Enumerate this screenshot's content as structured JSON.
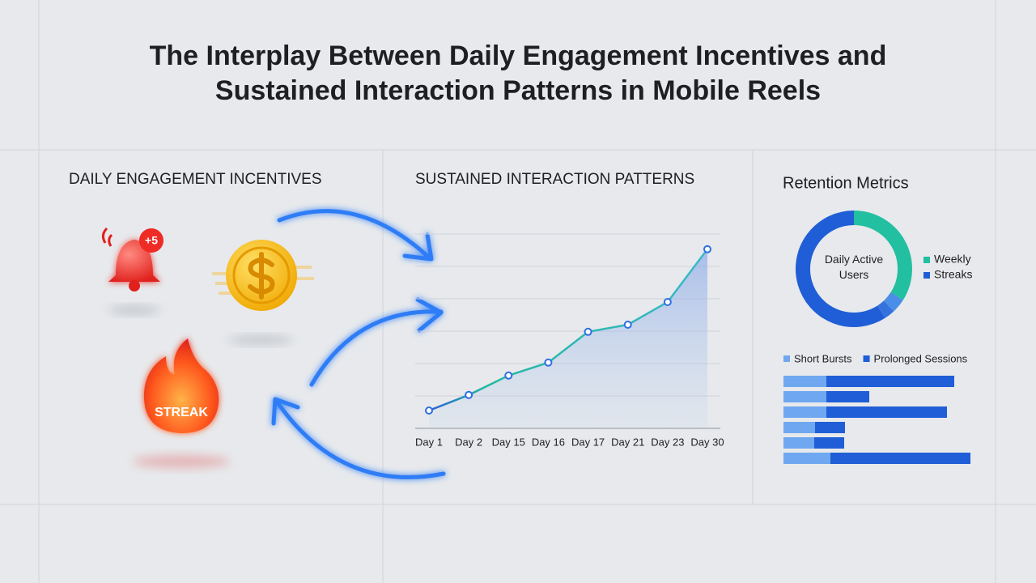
{
  "header": {
    "title": [
      "The Interplay Between Daily Engagement Incentives and",
      "Sustained Interaction Patterns in Mobile Reels"
    ]
  },
  "incentives": {
    "heading": "DAILY ENGAGEMENT INCENTIVES",
    "badge": "+5",
    "streak": "STREAK"
  },
  "chart_data": [
    {
      "type": "line",
      "title": "SUSTAINED INTERACTION PATTERNS",
      "categories": [
        "Day 1",
        "Day 2",
        "Day 15",
        "Day 16",
        "Day 17",
        "Day 21",
        "Day 23",
        "Day 30"
      ],
      "values": [
        0.55,
        1.03,
        1.63,
        2.03,
        2.98,
        3.2,
        3.9,
        5.53
      ],
      "color": "#2f6fe0",
      "ylim": [
        0,
        6
      ],
      "yticks": [
        0,
        1,
        2,
        3,
        4,
        5,
        6
      ],
      "grid": true
    },
    {
      "type": "pie",
      "title": "Retention Metrics",
      "donut": true,
      "center_label": "Daily Active Users",
      "categories": [
        "Weekly",
        null,
        null,
        "Streaks"
      ],
      "values": [
        34,
        4,
        3,
        59
      ],
      "colors": [
        "#22bfa0",
        "#4a8ee8",
        "#3572de",
        "#1f5ed6"
      ]
    },
    {
      "type": "bar",
      "orientation": "horizontal",
      "stacked": true,
      "xlim": [
        0,
        240
      ],
      "series": [
        {
          "name": "Short Bursts",
          "color": "#6fa8f0",
          "values": [
            53,
            53,
            53,
            39,
            38,
            58
          ]
        },
        {
          "name": "Prolonged Sessions",
          "color": "#1f5ed6",
          "values": [
            158,
            53,
            149,
            37,
            37,
            173
          ]
        }
      ]
    }
  ]
}
